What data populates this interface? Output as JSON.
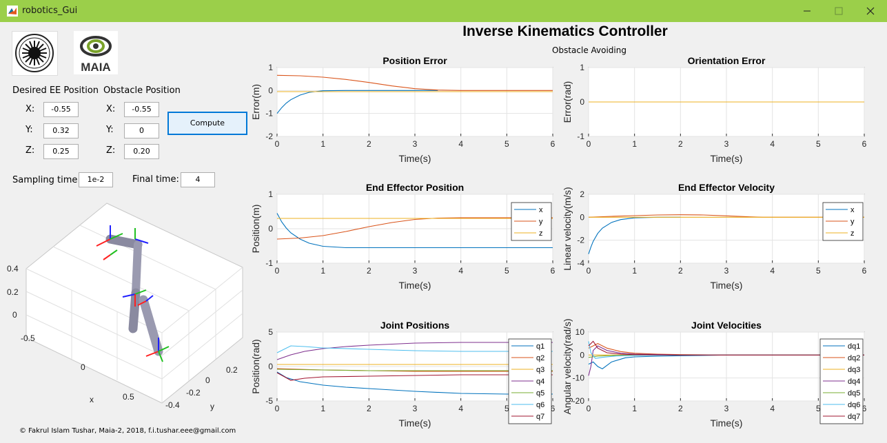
{
  "window": {
    "title": "robotics_Gui"
  },
  "header": {
    "title": "Inverse Kinematics Controller",
    "subtitle": "Obstacle Avoiding"
  },
  "logos": {
    "right_logo_text": "MAIA"
  },
  "desired": {
    "label": "Desired EE Position",
    "x_label": "X:",
    "y_label": "Y:",
    "z_label": "Z:",
    "x": "-0.55",
    "y": "0.32",
    "z": "0.25"
  },
  "obstacle": {
    "label": "Obstacle Position",
    "x_label": "X:",
    "y_label": "Y:",
    "z_label": "Z:",
    "x": "-0.55",
    "y": "0",
    "z": "0.20"
  },
  "compute_label": "Compute",
  "sampling": {
    "label": "Sampling time :",
    "value": "1e-2"
  },
  "final": {
    "label": "Final time:",
    "value": "4"
  },
  "footer": "© Fakrul Islam Tushar, Maia-2, 2018, f.i.tushar.eee@gmail.com",
  "robot_view": {
    "z_ticks": [
      "0.4",
      "0.2",
      "0"
    ],
    "x_ticks": [
      "-0.5",
      "0",
      "0.5"
    ],
    "y_ticks": [
      "-0.4",
      "-0.2",
      "0",
      "0.2"
    ],
    "xlabel": "x",
    "ylabel": "y"
  },
  "colors": {
    "c1": "#0072bd",
    "c2": "#d95319",
    "c3": "#edb120",
    "c4": "#7e2f8e",
    "c5": "#77ac30",
    "c6": "#4dbeee",
    "c7": "#a2142f",
    "titlebar": "#9bcf4a"
  },
  "chart_data": [
    {
      "id": "pos_err",
      "type": "line",
      "title": "Position Error",
      "xlabel": "Time(s)",
      "ylabel": "Error(m)",
      "xlim": [
        0,
        6
      ],
      "ylim": [
        -2,
        1
      ],
      "xticks": [
        0,
        1,
        2,
        3,
        4,
        5,
        6
      ],
      "yticks": [
        -2,
        -1,
        0,
        1
      ],
      "grid": true,
      "legend": null,
      "series": [
        {
          "name": "",
          "color": "#0072bd",
          "x": [
            0,
            0.1,
            0.2,
            0.3,
            0.5,
            0.7,
            1.0,
            1.5,
            2,
            3,
            3.5
          ],
          "y": [
            -1.0,
            -0.75,
            -0.55,
            -0.4,
            -0.2,
            -0.08,
            -0.01,
            0.0,
            0.0,
            0.0,
            0.0
          ]
        },
        {
          "name": "",
          "color": "#d95319",
          "x": [
            0,
            0.5,
            1.0,
            1.5,
            2.0,
            2.5,
            3.0,
            3.5,
            4,
            5,
            6
          ],
          "y": [
            0.66,
            0.64,
            0.58,
            0.48,
            0.35,
            0.2,
            0.08,
            0.02,
            0.0,
            0.0,
            0.0
          ]
        },
        {
          "name": "",
          "color": "#edb120",
          "x": [
            0,
            6
          ],
          "y": [
            -0.05,
            -0.05
          ]
        }
      ]
    },
    {
      "id": "ori_err",
      "type": "line",
      "title": "Orientation Error",
      "xlabel": "Time(s)",
      "ylabel": "Error(rad)",
      "xlim": [
        0,
        6
      ],
      "ylim": [
        -1,
        1
      ],
      "xticks": [
        0,
        1,
        2,
        3,
        4,
        5,
        6
      ],
      "yticks": [
        -1,
        0,
        1
      ],
      "grid": true,
      "legend": null,
      "series": [
        {
          "name": "",
          "color": "#0072bd",
          "x": [
            0,
            6
          ],
          "y": [
            0,
            0
          ]
        },
        {
          "name": "",
          "color": "#d95319",
          "x": [
            0,
            6
          ],
          "y": [
            0,
            0
          ]
        },
        {
          "name": "",
          "color": "#edb120",
          "x": [
            0,
            6
          ],
          "y": [
            0,
            0
          ]
        }
      ]
    },
    {
      "id": "ee_pos",
      "type": "line",
      "title": "End Effector Position",
      "xlabel": "Time(s)",
      "ylabel": "Position(m)",
      "xlim": [
        0,
        6
      ],
      "ylim": [
        -1,
        1
      ],
      "xticks": [
        0,
        1,
        2,
        3,
        4,
        5,
        6
      ],
      "yticks": [
        -1,
        0,
        1
      ],
      "grid": true,
      "legend": "top-right",
      "series": [
        {
          "name": "x",
          "color": "#0072bd",
          "x": [
            0,
            0.1,
            0.2,
            0.3,
            0.5,
            0.7,
            1.0,
            1.5,
            2,
            3,
            4,
            6
          ],
          "y": [
            0.45,
            0.2,
            0.02,
            -0.12,
            -0.3,
            -0.42,
            -0.51,
            -0.55,
            -0.55,
            -0.55,
            -0.55,
            -0.55
          ]
        },
        {
          "name": "y",
          "color": "#d95319",
          "x": [
            0,
            0.5,
            1.0,
            1.5,
            2.0,
            2.5,
            3.0,
            3.5,
            4,
            5,
            6
          ],
          "y": [
            -0.3,
            -0.27,
            -0.2,
            -0.08,
            0.06,
            0.18,
            0.27,
            0.31,
            0.32,
            0.32,
            0.32
          ]
        },
        {
          "name": "z",
          "color": "#edb120",
          "x": [
            0,
            6
          ],
          "y": [
            0.3,
            0.3
          ]
        }
      ]
    },
    {
      "id": "ee_vel",
      "type": "line",
      "title": "End Effector Velocity",
      "xlabel": "Time(s)",
      "ylabel": "Linear velocity(m/s)",
      "xlim": [
        0,
        6
      ],
      "ylim": [
        -4,
        2
      ],
      "xticks": [
        0,
        1,
        2,
        3,
        4,
        5,
        6
      ],
      "yticks": [
        -4,
        -2,
        0,
        2
      ],
      "grid": true,
      "legend": "top-right",
      "series": [
        {
          "name": "x",
          "color": "#0072bd",
          "x": [
            0,
            0.05,
            0.1,
            0.2,
            0.3,
            0.5,
            0.7,
            1.0,
            1.5,
            2
          ],
          "y": [
            -3.2,
            -2.6,
            -2.1,
            -1.4,
            -0.95,
            -0.45,
            -0.2,
            -0.05,
            0,
            0
          ]
        },
        {
          "name": "y",
          "color": "#d95319",
          "x": [
            0,
            0.5,
            1.0,
            1.5,
            2.0,
            2.5,
            3.0,
            3.5,
            3.8,
            6
          ],
          "y": [
            0.0,
            0.08,
            0.14,
            0.2,
            0.22,
            0.2,
            0.12,
            0.04,
            0.0,
            0.0
          ]
        },
        {
          "name": "z",
          "color": "#edb120",
          "x": [
            0,
            6
          ],
          "y": [
            0,
            0
          ]
        }
      ]
    },
    {
      "id": "jpos",
      "type": "line",
      "title": "Joint Positions",
      "xlabel": "Time(s)",
      "ylabel": "Position(rad)",
      "xlim": [
        0,
        6
      ],
      "ylim": [
        -5,
        5
      ],
      "xticks": [
        0,
        1,
        2,
        3,
        4,
        5,
        6
      ],
      "yticks": [
        -5,
        0,
        5
      ],
      "grid": true,
      "legend": "right",
      "series": [
        {
          "name": "q1",
          "color": "#0072bd",
          "x": [
            0,
            0.2,
            0.5,
            1,
            1.5,
            2,
            3,
            4,
            5,
            6
          ],
          "y": [
            -0.8,
            -1.6,
            -2.2,
            -2.7,
            -3.0,
            -3.2,
            -3.6,
            -3.9,
            -4.0,
            -4.0
          ]
        },
        {
          "name": "q2",
          "color": "#d95319",
          "x": [
            0,
            0.5,
            1,
            2,
            3,
            4,
            5,
            6
          ],
          "y": [
            -0.3,
            -0.4,
            -0.5,
            -0.6,
            -0.7,
            -0.7,
            -0.7,
            -0.7
          ]
        },
        {
          "name": "q3",
          "color": "#edb120",
          "x": [
            0,
            1,
            2,
            3,
            4,
            5,
            6
          ],
          "y": [
            0.3,
            0.3,
            0.3,
            0.3,
            0.3,
            0.3,
            0.3
          ]
        },
        {
          "name": "q4",
          "color": "#7e2f8e",
          "x": [
            0,
            0.3,
            0.6,
            1,
            1.5,
            2,
            3,
            4,
            5,
            6
          ],
          "y": [
            1.0,
            1.7,
            2.2,
            2.6,
            2.9,
            3.1,
            3.4,
            3.5,
            3.5,
            3.5
          ]
        },
        {
          "name": "q5",
          "color": "#77ac30",
          "x": [
            0,
            1,
            2,
            3,
            4,
            5,
            6
          ],
          "y": [
            -0.4,
            -0.5,
            -0.6,
            -0.6,
            -0.6,
            -0.6,
            -0.6
          ]
        },
        {
          "name": "q6",
          "color": "#4dbeee",
          "x": [
            0,
            0.3,
            0.6,
            1,
            2,
            3,
            4,
            5,
            6
          ],
          "y": [
            2.0,
            3.0,
            2.9,
            2.7,
            2.5,
            2.3,
            2.2,
            2.2,
            2.2
          ]
        },
        {
          "name": "q7",
          "color": "#a2142f",
          "x": [
            0,
            0.3,
            0.6,
            1,
            2,
            3,
            4,
            5,
            6
          ],
          "y": [
            -0.9,
            -2.0,
            -1.7,
            -1.5,
            -1.4,
            -1.3,
            -1.2,
            -1.2,
            -1.2
          ]
        }
      ]
    },
    {
      "id": "jvel",
      "type": "line",
      "title": "Joint Velocities",
      "xlabel": "Time(s)",
      "ylabel": "Angular velocity(rad/s)",
      "xlim": [
        0,
        6
      ],
      "ylim": [
        -20,
        10
      ],
      "xticks": [
        0,
        1,
        2,
        3,
        4,
        5,
        6
      ],
      "yticks": [
        -20,
        -10,
        0,
        10
      ],
      "grid": true,
      "legend": "right",
      "series": [
        {
          "name": "dq1",
          "color": "#0072bd",
          "x": [
            0,
            0.1,
            0.2,
            0.3,
            0.5,
            0.8,
            1,
            1.5,
            2,
            3,
            6
          ],
          "y": [
            -4,
            -3,
            -5,
            -6,
            -3,
            -1.2,
            -0.8,
            -0.5,
            -0.3,
            0,
            0
          ]
        },
        {
          "name": "dq2",
          "color": "#d95319",
          "x": [
            0,
            0.1,
            0.2,
            0.4,
            0.7,
            1,
            1.5,
            2,
            3,
            6
          ],
          "y": [
            3,
            4,
            5,
            3,
            1.5,
            0.8,
            0.4,
            0.2,
            0,
            0
          ]
        },
        {
          "name": "dq3",
          "color": "#edb120",
          "x": [
            0,
            1,
            2,
            6
          ],
          "y": [
            0,
            0,
            0,
            0
          ]
        },
        {
          "name": "dq4",
          "color": "#7e2f8e",
          "x": [
            0,
            0.05,
            0.1,
            0.2,
            0.4,
            0.7,
            1,
            2,
            6
          ],
          "y": [
            -9,
            -5,
            2,
            4,
            2,
            0.8,
            0.4,
            0.1,
            0
          ]
        },
        {
          "name": "dq5",
          "color": "#77ac30",
          "x": [
            0,
            0.2,
            0.5,
            1,
            2,
            6
          ],
          "y": [
            -1,
            -0.5,
            -0.2,
            -0.1,
            0,
            0
          ]
        },
        {
          "name": "dq6",
          "color": "#4dbeee",
          "x": [
            0,
            0.05,
            0.15,
            0.3,
            0.6,
            1,
            2,
            6
          ],
          "y": [
            6,
            1,
            -1.5,
            -1,
            -0.4,
            -0.2,
            0,
            0
          ]
        },
        {
          "name": "dq7",
          "color": "#a2142f",
          "x": [
            0,
            0.1,
            0.2,
            0.4,
            0.7,
            1,
            2,
            6
          ],
          "y": [
            4,
            6,
            3,
            1,
            0.4,
            0.2,
            0,
            0
          ]
        }
      ]
    }
  ]
}
